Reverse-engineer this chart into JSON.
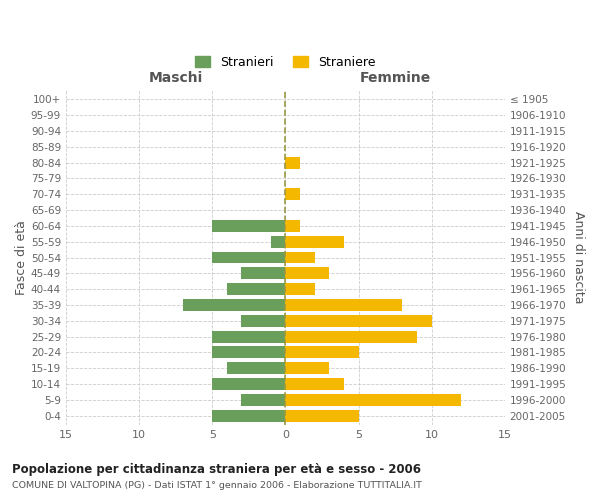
{
  "age_groups": [
    "0-4",
    "5-9",
    "10-14",
    "15-19",
    "20-24",
    "25-29",
    "30-34",
    "35-39",
    "40-44",
    "45-49",
    "50-54",
    "55-59",
    "60-64",
    "65-69",
    "70-74",
    "75-79",
    "80-84",
    "85-89",
    "90-94",
    "95-99",
    "100+"
  ],
  "birth_years": [
    "2001-2005",
    "1996-2000",
    "1991-1995",
    "1986-1990",
    "1981-1985",
    "1976-1980",
    "1971-1975",
    "1966-1970",
    "1961-1965",
    "1956-1960",
    "1951-1955",
    "1946-1950",
    "1941-1945",
    "1936-1940",
    "1931-1935",
    "1926-1930",
    "1921-1925",
    "1916-1920",
    "1911-1915",
    "1906-1910",
    "≤ 1905"
  ],
  "males": [
    5,
    3,
    5,
    4,
    5,
    5,
    3,
    7,
    4,
    3,
    5,
    1,
    5,
    0,
    0,
    0,
    0,
    0,
    0,
    0,
    0
  ],
  "females": [
    5,
    12,
    4,
    3,
    5,
    9,
    10,
    8,
    2,
    3,
    2,
    4,
    1,
    0,
    1,
    0,
    1,
    0,
    0,
    0,
    0
  ],
  "male_color": "#6a9e5b",
  "female_color": "#f5b800",
  "title": "Popolazione per cittadinanza straniera per età e sesso - 2006",
  "subtitle": "COMUNE DI VALTOPINA (PG) - Dati ISTAT 1° gennaio 2006 - Elaborazione TUTTITALIA.IT",
  "ylabel_left": "Fasce di età",
  "ylabel_right": "Anni di nascita",
  "xlabel_left": "Maschi",
  "xlabel_right": "Femmine",
  "legend_male": "Stranieri",
  "legend_female": "Straniere",
  "xlim": 15,
  "background_color": "#ffffff",
  "grid_color": "#cccccc",
  "bar_height": 0.75,
  "dashed_line_color": "#999944"
}
